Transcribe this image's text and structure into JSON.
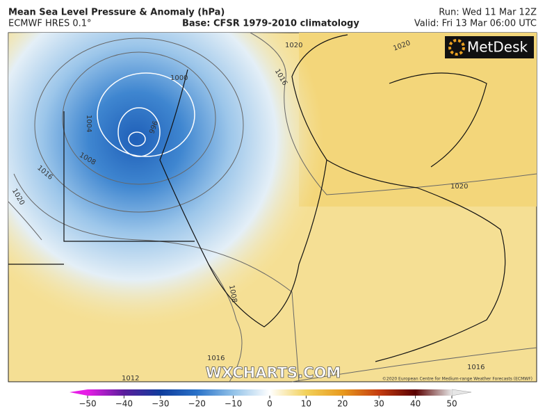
{
  "header": {
    "title": "Mean Sea Level Pressure & Anomaly (hPa)",
    "model": "ECMWF HRES 0.1°",
    "base": "Base: CFSR 1979-2010 climatology",
    "run": "Run: Wed 11 Mar 12Z",
    "valid": "Valid: Fri 13 Mar 06:00 UTC"
  },
  "map": {
    "contour_labels": [
      1000,
      996,
      1004,
      1008,
      1016,
      1020,
      1020,
      1016,
      1020,
      1020,
      1008,
      1016,
      1016,
      1012
    ],
    "logo": "MetDesk",
    "watermark": "WXCHARTS.COM",
    "copyright": "©2020 European Centre for Medium-range Weather Forecasts (ECMWF)"
  },
  "colorbar": {
    "range": [
      -50,
      50
    ],
    "ticks": [
      {
        "value": -50,
        "label": "−50"
      },
      {
        "value": -40,
        "label": "−40"
      },
      {
        "value": -30,
        "label": "−30"
      },
      {
        "value": -20,
        "label": "−20"
      },
      {
        "value": -10,
        "label": "−10"
      },
      0,
      10,
      20,
      30,
      40,
      50
    ],
    "colors": [
      "#e61ee6",
      "#5a1e9c",
      "#0f3c9c",
      "#2a72c8",
      "#92c2e8",
      "#ffffff",
      "#f2d15a",
      "#e89a1e",
      "#c43c10",
      "#5a0000",
      "#e6e6e6"
    ]
  }
}
